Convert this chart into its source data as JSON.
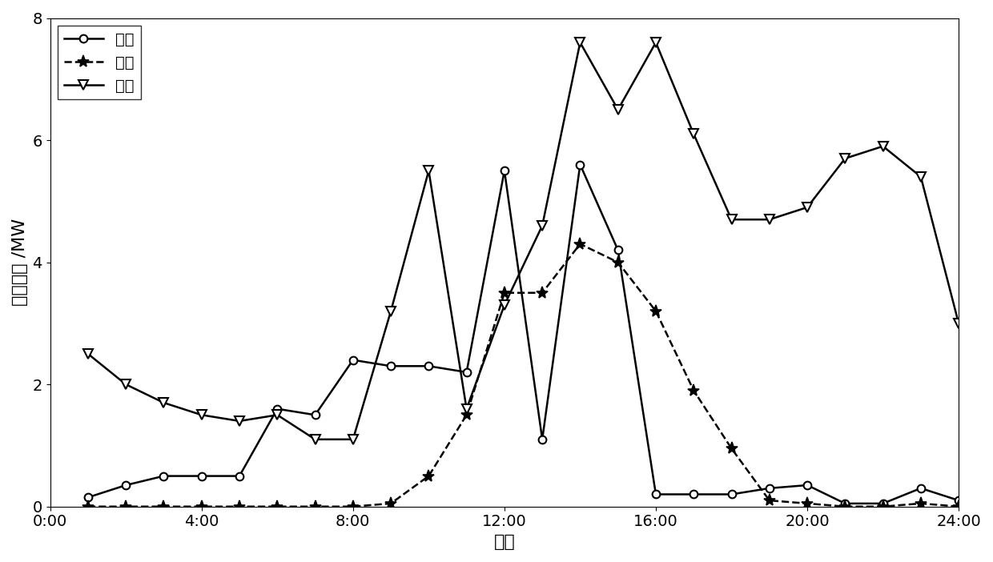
{
  "x_labels": [
    "0:00",
    "4:00",
    "8:00",
    "12:00",
    "16:00",
    "20:00",
    "24:00"
  ],
  "x_ticks": [
    0,
    4,
    8,
    12,
    16,
    20,
    24
  ],
  "wind_x": [
    1,
    2,
    3,
    4,
    5,
    6,
    7,
    8,
    9,
    10,
    11,
    12,
    13,
    14,
    15,
    16,
    17,
    18,
    19,
    20,
    21,
    22,
    23,
    24
  ],
  "wind_y": [
    0.15,
    0.35,
    0.5,
    0.5,
    0.5,
    1.6,
    1.5,
    2.4,
    2.3,
    2.3,
    2.2,
    5.5,
    1.1,
    5.6,
    4.2,
    0.2,
    0.2,
    0.2,
    0.3,
    0.35,
    0.05,
    0.05,
    0.3,
    0.1
  ],
  "pv_x": [
    1,
    2,
    3,
    4,
    5,
    6,
    7,
    8,
    9,
    10,
    11,
    12,
    13,
    14,
    15,
    16,
    17,
    18,
    19,
    20,
    21,
    22,
    23,
    24
  ],
  "pv_y": [
    0.0,
    0.0,
    0.0,
    0.0,
    0.0,
    0.0,
    0.0,
    0.0,
    0.05,
    0.5,
    1.5,
    3.5,
    3.5,
    4.3,
    4.0,
    3.2,
    1.9,
    0.95,
    0.1,
    0.05,
    0.0,
    0.0,
    0.05,
    0.0
  ],
  "load_x": [
    1,
    2,
    3,
    4,
    5,
    6,
    7,
    8,
    9,
    10,
    11,
    12,
    13,
    14,
    15,
    16,
    17,
    18,
    19,
    20,
    21,
    22,
    23,
    24
  ],
  "load_y": [
    2.5,
    2.0,
    1.7,
    1.5,
    1.4,
    1.5,
    1.1,
    1.1,
    3.2,
    5.5,
    1.6,
    3.3,
    4.6,
    7.6,
    6.5,
    7.6,
    6.1,
    4.7,
    4.7,
    4.9,
    5.7,
    5.9,
    5.4,
    3.0
  ],
  "ylim": [
    0,
    8
  ],
  "yticks": [
    0,
    2,
    4,
    6,
    8
  ],
  "xlabel": "时刻",
  "ylabel": "预测数据 /MW",
  "legend_labels": [
    "风机",
    "光伏",
    "负荷"
  ],
  "line_color": "black",
  "background_color": "white",
  "label_fontsize": 16,
  "tick_fontsize": 14,
  "legend_fontsize": 14
}
